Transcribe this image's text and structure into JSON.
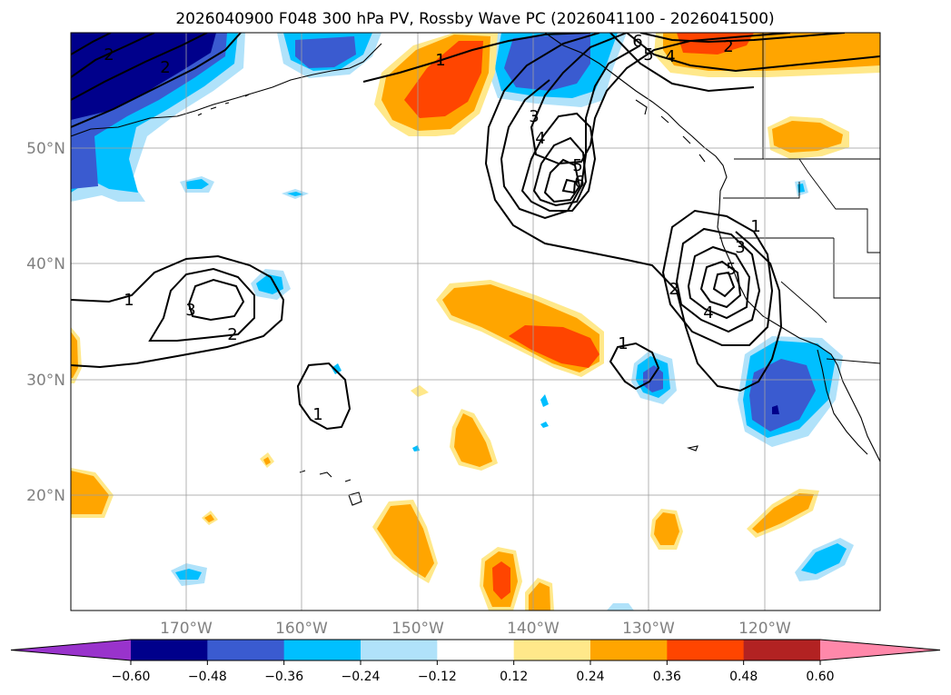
{
  "title": "2026040900 F048 300 hPa PV, Rossby Wave PC (2026041100 - 2026041500)",
  "latitude_labels": [
    "50°N",
    "40°N",
    "30°N",
    "20°N"
  ],
  "longitude_labels": [
    "170°W",
    "160°W",
    "150°W",
    "140°W",
    "130°W",
    "120°W"
  ],
  "colorbar": {
    "tick_labels": [
      "−0.60",
      "−0.48",
      "−0.36",
      "−0.24",
      "−0.12",
      "0.12",
      "0.24",
      "0.36",
      "0.48",
      "0.60"
    ],
    "colors": [
      "#9933cc",
      "#00008b",
      "#3a5bd0",
      "#00bfff",
      "#b0e2fa",
      "#ffffff",
      "#ffe88a",
      "#ffa500",
      "#ff4500",
      "#b22222",
      "#ff88aa"
    ]
  },
  "contour_labels": [
    "1",
    "2",
    "3",
    "4",
    "5",
    "6"
  ],
  "chart_data": {
    "type": "map",
    "title": "2026040900 F048 300 hPa PV, Rossby Wave PC (2026041100 - 2026041500)",
    "projection": "plate carree",
    "extent": {
      "lon": [
        -180,
        -110
      ],
      "lat": [
        10,
        60
      ]
    },
    "gridlines": true,
    "shaded_field": "Rossby Wave PC anomaly",
    "contour_field": "300 hPa PV (PVU)",
    "contour_levels": [
      1,
      2,
      3,
      4,
      5,
      6
    ],
    "features": [
      {
        "name": "pv-low-gulf-of-alaska",
        "center": [
          -141,
          46
        ],
        "max_level": 6
      },
      {
        "name": "pv-low-california",
        "center": [
          -124,
          38
        ],
        "max_level": 5
      },
      {
        "name": "pv-low-central-pacific",
        "center": [
          -168,
          37
        ],
        "max_level": 3
      }
    ],
    "color_levels": [
      -0.6,
      -0.48,
      -0.36,
      -0.24,
      -0.12,
      0.12,
      0.24,
      0.36,
      0.48,
      0.6
    ],
    "colorbar_extend": "both"
  }
}
